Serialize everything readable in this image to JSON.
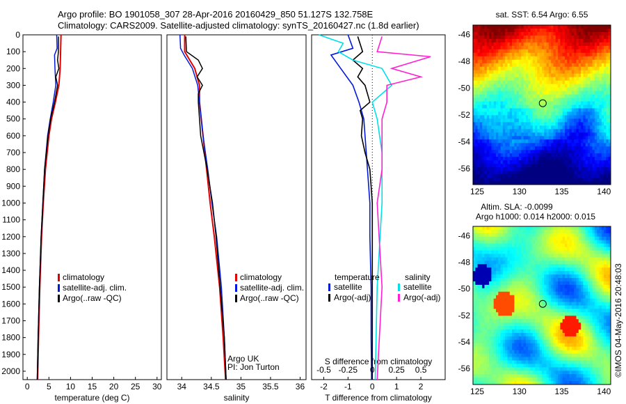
{
  "header": {
    "line1": "Argo profile: BO 1901058_307 28-Apr-2016 20160429_850 51.127S 132.758E",
    "line2": "Climatology: CARS2009. Satellite-adjusted climatology: synTS_20160427.nc (1.8d earlier)"
  },
  "colors": {
    "clim": "#e00000",
    "sat": "#0018d8",
    "argo": "#000000",
    "sal_sat": "#00e0e8",
    "sal_argo": "#ff20d0"
  },
  "sst_panel": {
    "title": "sat. SST: 6.54 Argo: 6.55"
  },
  "sla_panel": {
    "title1": "Altim. SLA: -0.0099",
    "title2": "Argo h1000: 0.014 h2000: 0.015"
  },
  "watermark": "©IMOS 04-May-2016 20:48:03",
  "credits": {
    "line1": "Argo UK",
    "line2": "PI: Jon Turton"
  },
  "legend_ts": [
    "climatology",
    "satellite-adj. clim.",
    "Argo(..raw -QC)"
  ],
  "legend_diff": {
    "temp_head": "temperature",
    "sal_head": "salinity",
    "sat": "satellite",
    "argo": "Argo(-adj)"
  },
  "chart_data": [
    {
      "type": "line",
      "xlabel": "temperature (deg C)",
      "ylabel": "",
      "xlim": [
        -1,
        31
      ],
      "ylim": [
        2050,
        0
      ],
      "xticks": [
        "0",
        "5",
        "10",
        "15",
        "20",
        "25",
        "30"
      ],
      "yticks": [
        "0",
        "100",
        "200",
        "300",
        "400",
        "500",
        "600",
        "700",
        "800",
        "900",
        "1000",
        "1100",
        "1200",
        "1300",
        "1400",
        "1500",
        "1600",
        "1700",
        "1800",
        "1900",
        "2000"
      ],
      "series": [
        {
          "name": "climatology",
          "y": [
            0,
            100,
            200,
            300,
            400,
            500,
            600,
            800,
            1000,
            1200,
            1500,
            1800,
            2050
          ],
          "x": [
            7.8,
            7.7,
            7.6,
            7.3,
            6.5,
            5.6,
            5.0,
            4.2,
            3.7,
            3.3,
            2.9,
            2.6,
            2.4
          ]
        },
        {
          "name": "satellite-adj. clim.",
          "y": [
            0,
            80,
            120,
            200,
            300,
            400,
            500,
            600,
            800,
            1000,
            1200,
            1500,
            1800,
            2050
          ],
          "x": [
            6.8,
            6.9,
            6.3,
            6.4,
            6.6,
            6.0,
            5.3,
            4.7,
            4.0,
            3.6,
            3.2,
            2.8,
            2.5,
            2.3
          ]
        },
        {
          "name": "Argo(..raw -QC)",
          "y": [
            10,
            100,
            150,
            200,
            250,
            300,
            400,
            500,
            600,
            800,
            1000,
            1200,
            1500,
            1800,
            2050
          ],
          "x": [
            7.2,
            7.2,
            7.0,
            7.3,
            6.6,
            7.0,
            6.3,
            5.4,
            4.8,
            4.0,
            3.6,
            3.2,
            2.8,
            2.5,
            2.3
          ]
        }
      ]
    },
    {
      "type": "line",
      "xlabel": "salinity",
      "ylabel": "",
      "xlim": [
        33.75,
        36.1
      ],
      "ylim": [
        2050,
        0
      ],
      "xticks": [
        "34",
        "34.5",
        "35",
        "35.5",
        "36"
      ],
      "series": [
        {
          "name": "climatology",
          "y": [
            0,
            100,
            200,
            300,
            400,
            500,
            600,
            800,
            1000,
            1200,
            1500,
            1800,
            2050
          ],
          "x": [
            34.05,
            34.05,
            34.22,
            34.3,
            34.3,
            34.33,
            34.36,
            34.42,
            34.48,
            34.55,
            34.64,
            34.7,
            34.74
          ]
        },
        {
          "name": "satellite-adj. clim.",
          "y": [
            0,
            80,
            120,
            200,
            300,
            400,
            500,
            600,
            800,
            1000,
            1200,
            1500,
            1800,
            2050
          ],
          "x": [
            33.97,
            33.98,
            34.04,
            34.18,
            34.27,
            34.3,
            34.33,
            34.36,
            34.44,
            34.51,
            34.59,
            34.67,
            34.72,
            34.75
          ]
        },
        {
          "name": "Argo(..raw -QC)",
          "y": [
            10,
            100,
            150,
            200,
            250,
            300,
            350,
            400,
            500,
            600,
            800,
            1000,
            1200,
            1500,
            1800,
            2050
          ],
          "x": [
            34.07,
            34.08,
            34.28,
            34.35,
            34.26,
            34.35,
            34.28,
            34.28,
            34.3,
            34.32,
            34.43,
            34.52,
            34.58,
            34.65,
            34.72,
            34.75
          ]
        }
      ]
    },
    {
      "type": "line",
      "xlabel": "T difference from climatology",
      "xlabel2": "S difference from climatology",
      "xlim": [
        -2.5,
        3.0
      ],
      "ylim": [
        2050,
        0
      ],
      "xticks": [
        "-2",
        "-1",
        "0",
        "1",
        "2"
      ],
      "xticks2": [
        "-0.5",
        "-0.25",
        "0",
        "0.25",
        "0.5"
      ],
      "series": [
        {
          "name": "temperature satellite",
          "y": [
            0,
            80,
            120,
            200,
            300,
            400,
            500,
            600,
            700,
            800,
            1000,
            1200,
            1500,
            1800,
            2050
          ],
          "x": [
            -1.0,
            -0.8,
            -1.7,
            -1.3,
            -0.8,
            -0.55,
            -0.35,
            -0.3,
            -0.25,
            -0.2,
            -0.1,
            -0.1,
            -0.05,
            -0.05,
            -0.03
          ]
        },
        {
          "name": "temperature Argo(-adj)",
          "y": [
            10,
            100,
            150,
            200,
            250,
            300,
            400,
            450,
            500,
            600,
            700,
            800,
            1000,
            1200,
            1500,
            2050
          ],
          "x": [
            -0.6,
            -0.4,
            -0.8,
            -0.4,
            -0.6,
            -0.3,
            -0.1,
            -0.5,
            -0.4,
            -0.45,
            -0.3,
            -0.1,
            0.0,
            0.0,
            0.0,
            0.0
          ]
        },
        {
          "name": "salinity satellite",
          "y": [
            0,
            50,
            100,
            150,
            200,
            300,
            400,
            500,
            700,
            1000,
            1500,
            2050
          ],
          "x": [
            -0.55,
            -0.3,
            -0.35,
            -0.2,
            0.1,
            0.2,
            0.0,
            0.05,
            0.1,
            0.1,
            0.05,
            0.03
          ]
        },
        {
          "name": "salinity Argo(-adj)",
          "y": [
            10,
            100,
            130,
            200,
            250,
            300,
            400,
            500,
            600,
            800,
            1000,
            1500,
            2050
          ],
          "x": [
            0.1,
            0.05,
            0.6,
            0.2,
            0.5,
            0.15,
            0.15,
            0.1,
            0.1,
            0.1,
            0.05,
            0.1,
            0.05
          ]
        }
      ]
    },
    {
      "type": "heatmap",
      "title": "sat. SST: 6.54 Argo: 6.55",
      "xticks": [
        "125",
        "130",
        "135",
        "140"
      ],
      "yticks": [
        "-46",
        "-48",
        "-50",
        "-52",
        "-54",
        "-56"
      ],
      "xlim": [
        124.5,
        140.8
      ],
      "ylim": [
        -57.2,
        -45.3
      ],
      "marker": {
        "lon": 132.76,
        "lat": -51.13
      }
    },
    {
      "type": "heatmap",
      "title": "Altim. SLA: -0.0099",
      "xticks": [
        "125",
        "130",
        "135",
        "140"
      ],
      "yticks": [
        "-46",
        "-48",
        "-50",
        "-52",
        "-54",
        "-56"
      ],
      "xlim": [
        124.5,
        140.8
      ],
      "ylim": [
        -57.2,
        -45.3
      ],
      "marker": {
        "lon": 132.76,
        "lat": -51.13
      }
    }
  ]
}
